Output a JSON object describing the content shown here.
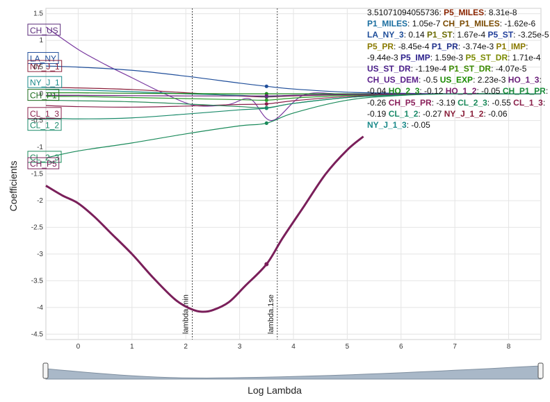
{
  "chart_data": {
    "type": "line",
    "xlabel": "Log Lambda",
    "ylabel": "Coefficients",
    "xlim": [
      -0.6,
      8.6
    ],
    "ylim": [
      -4.6,
      1.6
    ],
    "x_ticks": [
      0,
      1,
      2,
      3,
      4,
      5,
      6,
      7,
      8
    ],
    "y_ticks": [
      1.5,
      1,
      0.5,
      0,
      -0.5,
      -1,
      -1.5,
      -2,
      -2.5,
      -3,
      -3.5,
      -4,
      -4.5
    ],
    "reference_lines": [
      {
        "label": "lambda.min",
        "x": 2.12
      },
      {
        "label": "lambda.1se",
        "x": 3.7
      }
    ],
    "marker_x": 3.5,
    "legend_header": "3.51071094055736:",
    "legend_entries": [
      {
        "name": "P5_MILES",
        "value": "8.31e-8",
        "color": "#8b2500"
      },
      {
        "name": "P1_MILES",
        "value": "1.05e-7",
        "color": "#1a6ea0"
      },
      {
        "name": "CH_P1_MILES",
        "value": "-1.62e-6",
        "color": "#7a4a00"
      },
      {
        "name": "LA_NY_3",
        "value": "0.14",
        "color": "#1f4e9a"
      },
      {
        "name": "P1_ST",
        "value": "1.67e-4",
        "color": "#6b6b00"
      },
      {
        "name": "P5_ST",
        "value": "-3.25e-5",
        "color": "#1f3d9a"
      },
      {
        "name": "P5_PR",
        "value": "-8.45e-4",
        "color": "#8a7a00"
      },
      {
        "name": "P1_PR",
        "value": "-3.74e-3",
        "color": "#1f2f8a"
      },
      {
        "name": "P1_IMP",
        "value": "-9.44e-3",
        "color": "#8a7a00"
      },
      {
        "name": "P5_IMP",
        "value": "1.59e-3",
        "color": "#2a1f8a"
      },
      {
        "name": "P5_ST_DR",
        "value": "1.71e-4",
        "color": "#7a8a00"
      },
      {
        "name": "US_ST_DR",
        "value": "-1.19e-4",
        "color": "#4a1f8a"
      },
      {
        "name": "P1_ST_DR",
        "value": "-4.07e-5",
        "color": "#3a8a00"
      },
      {
        "name": "CH_US_DEM",
        "value": "-0.5",
        "color": "#5a1f8a"
      },
      {
        "name": "US_EXP",
        "value": "2.23e-3",
        "color": "#1a8a00"
      },
      {
        "name": "HO_1_3",
        "value": "-0.04",
        "color": "#6a1f7a"
      },
      {
        "name": "HO_2_3",
        "value": "-0.12",
        "color": "#1a8a1a"
      },
      {
        "name": "HO_1_2",
        "value": "-0.05",
        "color": "#7a1f6a"
      },
      {
        "name": "CH_P1_PR",
        "value": "-0.26",
        "color": "#1a8a3a"
      },
      {
        "name": "CH_P5_PR",
        "value": "-3.19",
        "color": "#8a1f5a"
      },
      {
        "name": "CL_2_3",
        "value": "-0.55",
        "color": "#1a8a5a"
      },
      {
        "name": "CL_1_3",
        "value": "-0.19",
        "color": "#8a1f4a"
      },
      {
        "name": "CL_1_2",
        "value": "-0.27",
        "color": "#1a8a6a"
      },
      {
        "name": "NY_J_1_2",
        "value": "-0.06",
        "color": "#8a1f3a"
      },
      {
        "name": "NY_J_1_3",
        "value": "-0.05",
        "color": "#1a8a8a"
      }
    ],
    "series": [
      {
        "name": "CH_US",
        "color": "#7a3aa0",
        "thick": false,
        "x": [
          -0.6,
          0,
          0.5,
          1,
          1.5,
          2,
          2.3,
          2.8,
          3.2,
          3.6,
          4.2,
          5,
          6,
          7,
          8,
          8.6
        ],
        "y": [
          1.25,
          0.83,
          0.55,
          0.3,
          0.05,
          -0.17,
          -0.23,
          -0.2,
          -0.1,
          -0.5,
          -0.02,
          -0.01,
          -0.005,
          -0.002,
          0,
          0
        ]
      },
      {
        "name": "LA_NY",
        "color": "#1f4e9a",
        "thick": false,
        "x": [
          -0.6,
          0,
          1,
          2,
          3,
          3.5,
          4,
          5,
          6,
          7,
          8,
          8.6
        ],
        "y": [
          0.52,
          0.5,
          0.44,
          0.33,
          0.2,
          0.14,
          0.09,
          0.03,
          0.01,
          0,
          0,
          0
        ]
      },
      {
        "name": "NY_J_1",
        "color": "#8a1f3a",
        "thick": false,
        "x": [
          -0.6,
          0,
          1,
          2,
          3,
          3.5,
          4,
          5,
          6,
          7,
          8,
          8.6
        ],
        "y": [
          0.12,
          0.11,
          0.08,
          0.02,
          -0.04,
          -0.06,
          -0.04,
          -0.015,
          -0.005,
          0,
          0,
          0
        ]
      },
      {
        "name": "NY_J_1_3",
        "color": "#1a8a8a",
        "thick": false,
        "x": [
          -0.6,
          0,
          1,
          2,
          3,
          3.5,
          4,
          5,
          6,
          7,
          8,
          8.6
        ],
        "y": [
          0.08,
          0.07,
          0.04,
          0,
          -0.03,
          -0.05,
          -0.03,
          -0.01,
          0,
          0,
          0,
          0
        ]
      },
      {
        "name": "CH_P1",
        "color": "#1a8a1a",
        "thick": false,
        "x": [
          -0.6,
          0,
          1,
          2,
          3,
          3.5,
          4,
          5,
          6,
          7,
          8,
          8.6
        ],
        "y": [
          0.02,
          0.02,
          0.01,
          0.005,
          0,
          0,
          0,
          0,
          0,
          0,
          0,
          0
        ]
      },
      {
        "name": "HO_2_3",
        "color": "#2a9a2a",
        "thick": false,
        "x": [
          -0.6,
          0,
          1,
          2,
          3,
          3.5,
          4,
          5,
          6,
          7,
          8,
          8.6
        ],
        "y": [
          -0.05,
          -0.05,
          -0.07,
          -0.09,
          -0.11,
          -0.12,
          -0.08,
          -0.03,
          -0.01,
          0,
          0,
          0
        ]
      },
      {
        "name": "CL_1_3",
        "color": "#8a1f4a",
        "thick": false,
        "x": [
          -0.6,
          0,
          1,
          2,
          3,
          3.5,
          4,
          5,
          6,
          7,
          8,
          8.6
        ],
        "y": [
          -0.22,
          -0.24,
          -0.25,
          -0.23,
          -0.2,
          -0.19,
          -0.13,
          -0.05,
          -0.015,
          0,
          0,
          0
        ]
      },
      {
        "name": "CH_P1_PR",
        "color": "#2a8a5a",
        "thick": false,
        "x": [
          -0.6,
          0,
          1,
          2,
          3,
          3.5,
          4,
          5,
          6,
          7,
          8,
          8.6
        ],
        "y": [
          -0.12,
          -0.13,
          -0.15,
          -0.19,
          -0.24,
          -0.26,
          -0.18,
          -0.07,
          -0.02,
          0,
          0,
          0
        ]
      },
      {
        "name": "CL_1_2",
        "color": "#1a8a6a",
        "thick": false,
        "x": [
          -0.6,
          0,
          1,
          2,
          3,
          3.5,
          4,
          5,
          6,
          7,
          8,
          8.6
        ],
        "y": [
          -0.45,
          -0.47,
          -0.45,
          -0.38,
          -0.3,
          -0.27,
          -0.18,
          -0.07,
          -0.02,
          0,
          0,
          0
        ]
      },
      {
        "name": "HO_1_3",
        "color": "#6a1f7a",
        "thick": false,
        "x": [
          -0.6,
          0,
          1,
          2,
          3,
          3.5,
          4,
          5,
          6,
          7,
          8,
          8.6
        ],
        "y": [
          -0.03,
          -0.03,
          -0.035,
          -0.04,
          -0.04,
          -0.04,
          -0.03,
          -0.01,
          0,
          0,
          0,
          0
        ]
      },
      {
        "name": "CL_2_3",
        "color": "#1a8a5a",
        "thick": false,
        "x": [
          -0.6,
          0,
          1,
          2,
          3,
          3.5,
          4,
          5,
          6,
          7,
          8,
          8.6
        ],
        "y": [
          -1.2,
          -1.07,
          -0.92,
          -0.75,
          -0.6,
          -0.55,
          -0.36,
          -0.12,
          -0.03,
          0,
          0,
          0
        ]
      },
      {
        "name": "CH_P5",
        "color": "#7a1f5a",
        "thick": true,
        "x": [
          -0.6,
          -0.3,
          0,
          0.3,
          0.6,
          1,
          1.4,
          1.8,
          2.1,
          2.3,
          2.5,
          2.8,
          3.1,
          3.5,
          3.8,
          4.2,
          4.6,
          5,
          5.3
        ],
        "y": [
          -1.72,
          -1.9,
          -2.05,
          -2.3,
          -2.6,
          -3.0,
          -3.45,
          -3.85,
          -4.03,
          -4.08,
          -4.05,
          -3.9,
          -3.6,
          -3.19,
          -2.7,
          -2.1,
          -1.5,
          -1.05,
          -0.8
        ]
      }
    ],
    "left_labels": [
      {
        "text": "CH_US",
        "y": 1.2,
        "color": "#5a2a7a"
      },
      {
        "text": "LA_NY",
        "y": 0.67,
        "color": "#1f4e9a"
      },
      {
        "text": "NY_J_1",
        "y": 0.52,
        "color": "#8a1f3a"
      },
      {
        "text": "NY_J_1",
        "y": 0.22,
        "color": "#1a8a8a"
      },
      {
        "text": "CH_P1",
        "y": -0.02,
        "color": "#1a6a1a"
      },
      {
        "text": "CL_1_3",
        "y": -0.36,
        "color": "#8a1f4a"
      },
      {
        "text": "CL_1_2",
        "y": -0.58,
        "color": "#1a8a6a"
      },
      {
        "text": "CL_2_3",
        "y": -1.18,
        "color": "#1a8a5a"
      },
      {
        "text": "CH_P5",
        "y": -1.3,
        "color": "#7a1f5a"
      }
    ]
  },
  "slider": {
    "left_handle": "left-handle",
    "right_handle": "right-handle"
  }
}
